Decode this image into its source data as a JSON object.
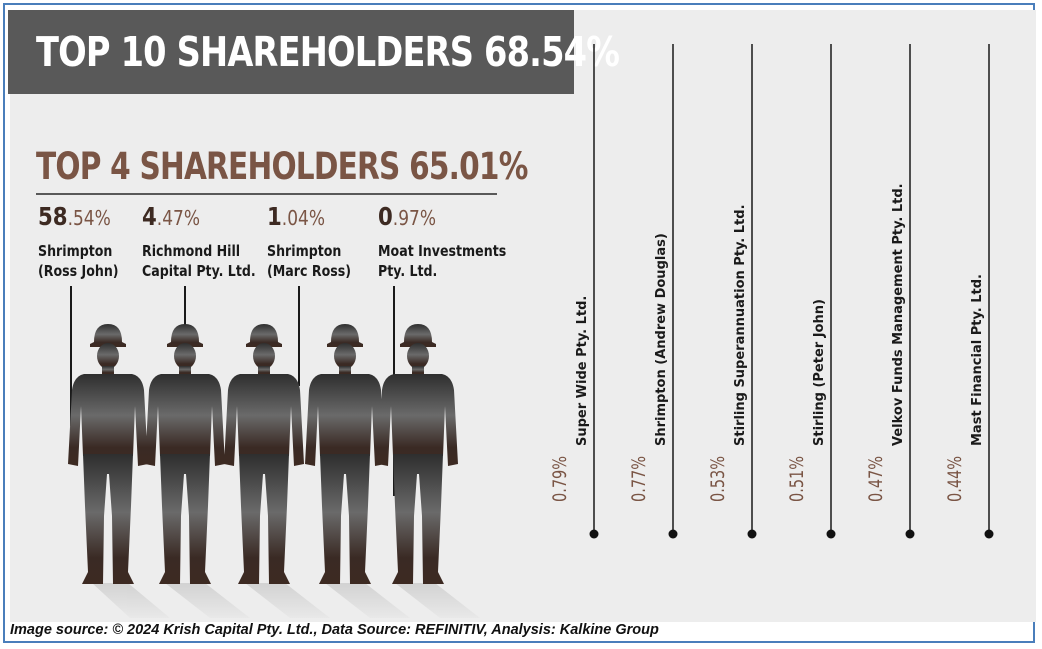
{
  "chart_data": {
    "type": "table",
    "title": "TOP 10 SHAREHOLDERS 68.54%",
    "subtitle": "TOP 4 SHAREHOLDERS 65.01%",
    "top_holders": [
      {
        "name_line1": "Shrimpton",
        "name_line2": "(Ross John)",
        "percent_major": "58",
        "percent_minor": ".54%",
        "value": 58.54
      },
      {
        "name_line1": "Richmond Hill",
        "name_line2": "Capital Pty. Ltd.",
        "percent_major": "4",
        "percent_minor": ".47%",
        "value": 4.47
      },
      {
        "name_line1": "Shrimpton",
        "name_line2": "(Marc Ross)",
        "percent_major": "1",
        "percent_minor": ".04%",
        "value": 1.04
      },
      {
        "name_line1": "Moat Investments",
        "name_line2": "Pty. Ltd.",
        "percent_major": "0",
        "percent_minor": ".97%",
        "value": 0.97
      }
    ],
    "other_holders": [
      {
        "name": "Super Wide Pty. Ltd.",
        "percent_label": "0.79%",
        "value": 0.79
      },
      {
        "name": "Shrimpton (Andrew Douglas)",
        "percent_label": "0.77%",
        "value": 0.77
      },
      {
        "name": "Stirling Superannuation Pty. Ltd.",
        "percent_label": "0.53%",
        "value": 0.53
      },
      {
        "name": "Stirling (Peter John)",
        "percent_label": "0.51%",
        "value": 0.51
      },
      {
        "name": "Velkov Funds Management Pty. Ltd.",
        "percent_label": "0.47%",
        "value": 0.47
      },
      {
        "name": "Mast Financial Pty. Ltd.",
        "percent_label": "0.44%",
        "value": 0.44
      }
    ]
  },
  "footer": "Image source: © 2024 Krish Capital Pty. Ltd., Data Source: REFINITIV, Analysis: Kalkine Group",
  "colors": {
    "title_bg": "#595959",
    "accent": "#7a5545",
    "dark_accent": "#3d2a22",
    "panel": "#ededed",
    "frame": "#4a7ebb"
  }
}
